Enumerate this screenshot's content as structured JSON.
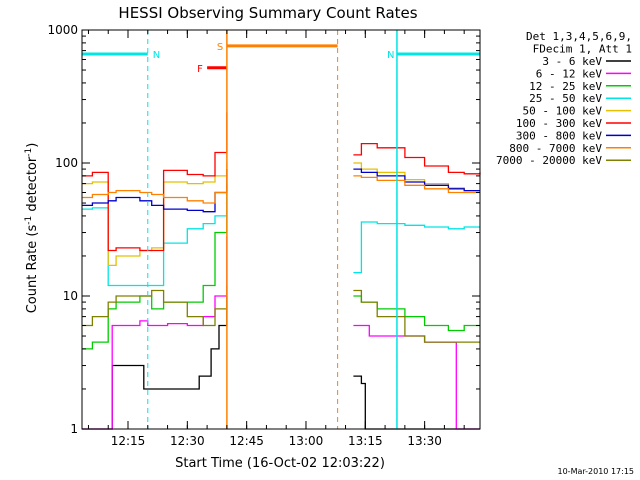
{
  "chart_data": {
    "type": "line",
    "title": "HESSI Observing Summary Count Rates",
    "xlabel": "Start Time (16-Oct-02 12:03:22)",
    "ylabel": "Count Rate (s",
    "ylabel_sup": "-1",
    "ylabel_mid": " detector",
    "ylabel_sup2": "-1",
    "ylabel_end": ")",
    "y_scale": "log",
    "ylim": [
      1,
      1000
    ],
    "xlim": [
      "12:03:22",
      "13:44:00"
    ],
    "x_ticks": [
      "12:15",
      "12:30",
      "12:45",
      "13:00",
      "13:15",
      "13:30"
    ],
    "y_ticks": [
      "1",
      "10",
      "100",
      "1000"
    ],
    "legend_header": [
      "Det 1,3,4,5,6,9,",
      "FDecim 1, Att 1"
    ],
    "legend_position": "right",
    "timestamp": "10-Mar-2010 17:15",
    "flags": [
      {
        "label": "N",
        "color": "#00e5e5",
        "start": "12:03:22",
        "end": "12:20:00",
        "level": 660
      },
      {
        "label": "N",
        "color": "#00e5e5",
        "start": "13:23:00",
        "end": "13:44:00",
        "level": 660
      },
      {
        "label": "S",
        "color": "#ff8000",
        "start": "12:40:00",
        "end": "13:08:00",
        "level": 760
      },
      {
        "label": "F",
        "color": "#ff0000",
        "start": "12:35:00",
        "end": "12:40:00",
        "level": 520
      }
    ],
    "gap": [
      "12:40:00",
      "13:12:00"
    ],
    "series": [
      {
        "name": "3 - 6 keV",
        "color": "#000000",
        "x": [
          "12:03:22",
          "12:10",
          "12:11",
          "12:18",
          "12:19",
          "12:25",
          "12:30",
          "12:33",
          "12:36",
          "12:38",
          "12:40",
          "13:12",
          "13:14",
          "13:15",
          "13:20",
          "13:25",
          "13:28",
          "13:35",
          "13:44"
        ],
        "y": [
          1,
          1,
          3,
          3,
          2,
          2,
          2,
          2.5,
          4,
          6,
          10,
          2.5,
          2.2,
          1,
          1,
          1,
          1,
          1,
          1
        ]
      },
      {
        "name": "6 - 12 keV",
        "color": "#ff00ff",
        "x": [
          "12:03:22",
          "12:10",
          "12:11",
          "12:18",
          "12:20",
          "12:25",
          "12:30",
          "12:34",
          "12:37",
          "12:40",
          "13:12",
          "13:14",
          "13:16",
          "13:20",
          "13:25",
          "13:30",
          "13:36",
          "13:38",
          "13:44"
        ],
        "y": [
          1,
          1,
          6,
          6.5,
          6,
          6.2,
          6,
          7,
          10,
          28,
          6,
          6,
          5,
          5,
          5,
          4.5,
          4.5,
          1,
          1
        ]
      },
      {
        "name": "12 - 25 keV",
        "color": "#00cc00",
        "x": [
          "12:03:22",
          "12:06",
          "12:10",
          "12:12",
          "12:18",
          "12:21",
          "12:24",
          "12:30",
          "12:34",
          "12:37",
          "12:40",
          "13:12",
          "13:14",
          "13:18",
          "13:25",
          "13:30",
          "13:36",
          "13:40",
          "13:44"
        ],
        "y": [
          4,
          4.5,
          8,
          9,
          10,
          8,
          9,
          9,
          12,
          30,
          70,
          10,
          9,
          8,
          7,
          6,
          5.5,
          6,
          6
        ]
      },
      {
        "name": "25 - 50 keV",
        "color": "#00e5e5",
        "x": [
          "12:03:22",
          "12:06",
          "12:10",
          "12:12",
          "12:18",
          "12:21",
          "12:24",
          "12:30",
          "12:34",
          "12:37",
          "12:40",
          "13:12",
          "13:14",
          "13:18",
          "13:25",
          "13:30",
          "13:36",
          "13:40",
          "13:44"
        ],
        "y": [
          45,
          46,
          12,
          12,
          12,
          12,
          25,
          32,
          35,
          40,
          55,
          15,
          36,
          35,
          34,
          33,
          32,
          33,
          33
        ]
      },
      {
        "name": "50 - 100 keV",
        "color": "#e5c000",
        "x": [
          "12:03:22",
          "12:06",
          "12:10",
          "12:12",
          "12:18",
          "12:21",
          "12:24",
          "12:30",
          "12:34",
          "12:37",
          "12:40",
          "13:12",
          "13:14",
          "13:18",
          "13:25",
          "13:30",
          "13:36",
          "13:40",
          "13:44"
        ],
        "y": [
          70,
          72,
          17,
          20,
          22,
          23,
          72,
          70,
          72,
          80,
          100,
          100,
          90,
          85,
          75,
          70,
          65,
          62,
          62
        ]
      },
      {
        "name": "100 - 300 keV",
        "color": "#ff0000",
        "x": [
          "12:03:22",
          "12:06",
          "12:10",
          "12:12",
          "12:18",
          "12:21",
          "12:24",
          "12:30",
          "12:34",
          "12:37",
          "12:40",
          "13:12",
          "13:14",
          "13:18",
          "13:25",
          "13:30",
          "13:36",
          "13:40",
          "13:44"
        ],
        "y": [
          80,
          85,
          22,
          23,
          22,
          22,
          88,
          82,
          80,
          120,
          240,
          115,
          140,
          130,
          110,
          95,
          85,
          83,
          85
        ]
      },
      {
        "name": "300 - 800 keV",
        "color": "#0000cc",
        "x": [
          "12:03:22",
          "12:06",
          "12:10",
          "12:12",
          "12:18",
          "12:21",
          "12:24",
          "12:30",
          "12:34",
          "12:37",
          "12:40",
          "13:12",
          "13:14",
          "13:18",
          "13:25",
          "13:30",
          "13:36",
          "13:40",
          "13:44"
        ],
        "y": [
          48,
          50,
          52,
          55,
          52,
          48,
          45,
          44,
          43,
          60,
          90,
          90,
          85,
          80,
          72,
          68,
          64,
          62,
          62
        ]
      },
      {
        "name": "800 - 7000 keV",
        "color": "#ff8000",
        "x": [
          "12:03:22",
          "12:06",
          "12:10",
          "12:12",
          "12:18",
          "12:21",
          "12:24",
          "12:30",
          "12:34",
          "12:37",
          "12:40",
          "13:12",
          "13:14",
          "13:18",
          "13:25",
          "13:30",
          "13:36",
          "13:40",
          "13:44"
        ],
        "y": [
          55,
          58,
          60,
          62,
          60,
          58,
          55,
          52,
          50,
          60,
          90,
          80,
          78,
          74,
          68,
          64,
          60,
          60,
          60
        ]
      },
      {
        "name": "7000 - 20000 keV",
        "color": "#808000",
        "x": [
          "12:03:22",
          "12:06",
          "12:10",
          "12:12",
          "12:18",
          "12:21",
          "12:24",
          "12:30",
          "12:34",
          "12:37",
          "12:40",
          "13:12",
          "13:14",
          "13:18",
          "13:25",
          "13:30",
          "13:36",
          "13:40",
          "13:44"
        ],
        "y": [
          6,
          7,
          9,
          10,
          10,
          11,
          9,
          7,
          6,
          8,
          12,
          11,
          9,
          7,
          5,
          4.5,
          4.5,
          4.5,
          4.5
        ]
      }
    ]
  }
}
